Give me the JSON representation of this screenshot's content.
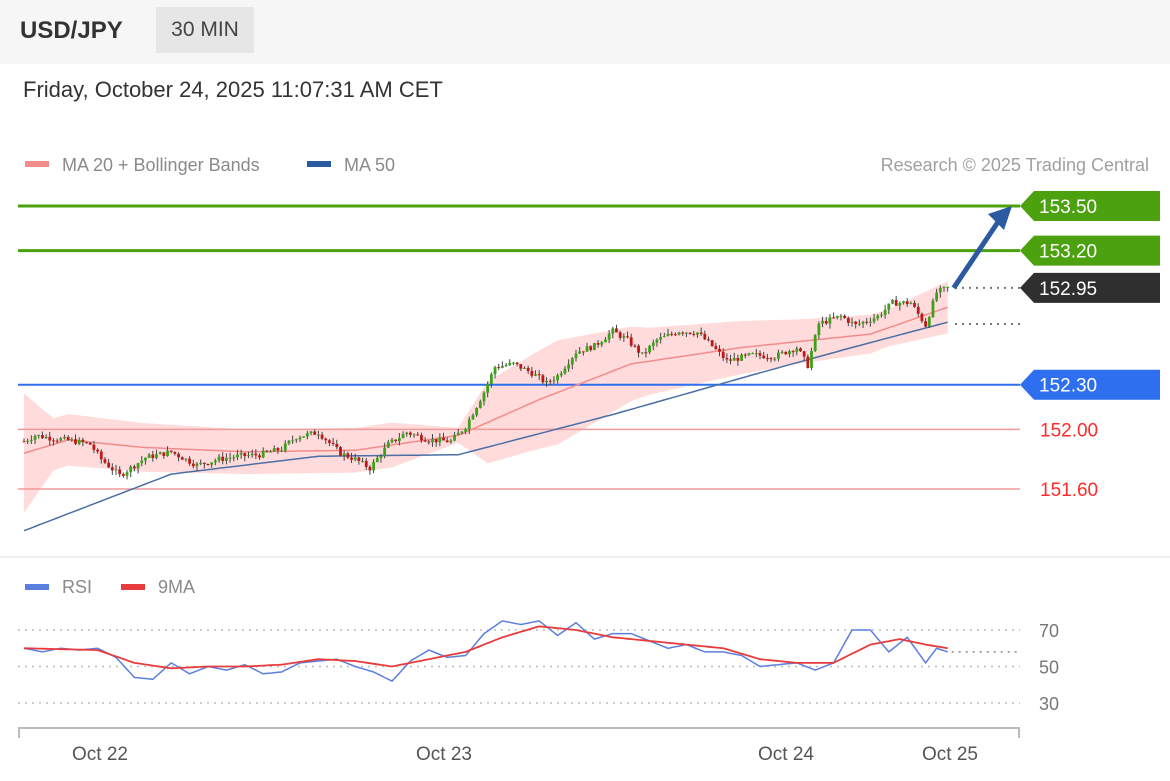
{
  "header": {
    "symbol": "USD/JPY",
    "timeframe": "30 MIN",
    "datetime": "Friday, October 24, 2025 11:07:31 AM CET"
  },
  "legend": {
    "ma20": "MA 20 + Bollinger Bands",
    "ma50": "MA 50",
    "credit": "Research © 2025 Trading Central"
  },
  "rsi_legend": {
    "rsi": "RSI",
    "ma9": "9MA"
  },
  "colors": {
    "resistance": "#4ca10f",
    "support": "#2e6ff0",
    "pivot": "#2f2f2f",
    "minor": "#ff3b3b",
    "up": "#3aa31a",
    "down": "#bf1717",
    "bollinger": "#ffcfcf",
    "ma20": "#f28c8c",
    "ma50": "#4a6fa5",
    "rsi": "#5b7fe0",
    "ma9": "#e83c3c",
    "arrow": "#2c5aa0"
  },
  "chart_data": [
    {
      "type": "line",
      "title": "USD/JPY 30 MIN",
      "x_ticks": [
        "Oct 22",
        "Oct 23",
        "Oct 24",
        "Oct 25"
      ],
      "ylim": [
        151.24,
        153.72
      ],
      "levels": [
        {
          "label": "153.50",
          "value": 153.5,
          "kind": "resistance"
        },
        {
          "label": "153.20",
          "value": 153.2,
          "kind": "resistance"
        },
        {
          "label": "152.95",
          "value": 152.95,
          "kind": "pivot"
        },
        {
          "label": "152.30",
          "value": 152.3,
          "kind": "support"
        },
        {
          "label": "152.00",
          "value": 152.0,
          "kind": "minor"
        },
        {
          "label": "151.60",
          "value": 151.6,
          "kind": "minor"
        }
      ],
      "forecast": {
        "from": 152.95,
        "to": 153.5
      },
      "close_anchors": [
        [
          0,
          151.92
        ],
        [
          3,
          151.96
        ],
        [
          8,
          151.94
        ],
        [
          14,
          151.92
        ],
        [
          18,
          151.9
        ],
        [
          21,
          151.8
        ],
        [
          26,
          151.69
        ],
        [
          33,
          151.81
        ],
        [
          40,
          151.85
        ],
        [
          47,
          151.76
        ],
        [
          53,
          151.8
        ],
        [
          58,
          151.82
        ],
        [
          64,
          151.83
        ],
        [
          70,
          151.87
        ],
        [
          74,
          151.95
        ],
        [
          80,
          151.98
        ],
        [
          86,
          151.84
        ],
        [
          90,
          151.8
        ],
        [
          94,
          151.74
        ],
        [
          99,
          151.9
        ],
        [
          104,
          151.98
        ],
        [
          110,
          151.93
        ],
        [
          116,
          151.92
        ],
        [
          120,
          152.02
        ],
        [
          125,
          152.25
        ],
        [
          128,
          152.42
        ],
        [
          133,
          152.44
        ],
        [
          138,
          152.38
        ],
        [
          142,
          152.31
        ],
        [
          145,
          152.36
        ],
        [
          150,
          152.52
        ],
        [
          155,
          152.56
        ],
        [
          160,
          152.66
        ],
        [
          164,
          152.6
        ],
        [
          168,
          152.5
        ],
        [
          172,
          152.6
        ],
        [
          178,
          152.66
        ],
        [
          183,
          152.65
        ],
        [
          187,
          152.56
        ],
        [
          191,
          152.46
        ],
        [
          198,
          152.5
        ],
        [
          204,
          152.49
        ],
        [
          210,
          152.55
        ],
        [
          213,
          152.43
        ],
        [
          216,
          152.71
        ],
        [
          222,
          152.76
        ],
        [
          226,
          152.7
        ],
        [
          232,
          152.76
        ],
        [
          236,
          152.85
        ],
        [
          241,
          152.85
        ],
        [
          245,
          152.7
        ],
        [
          248,
          152.92
        ],
        [
          251,
          152.95
        ]
      ],
      "ma20_anchors": [
        [
          0,
          151.84
        ],
        [
          12,
          151.93
        ],
        [
          32,
          151.88
        ],
        [
          60,
          151.85
        ],
        [
          90,
          151.86
        ],
        [
          118,
          151.96
        ],
        [
          140,
          152.2
        ],
        [
          165,
          152.44
        ],
        [
          195,
          152.55
        ],
        [
          230,
          152.64
        ],
        [
          251,
          152.82
        ]
      ],
      "ma50_anchors": [
        [
          0,
          151.32
        ],
        [
          40,
          151.7
        ],
        [
          80,
          151.82
        ],
        [
          118,
          151.83
        ],
        [
          160,
          152.1
        ],
        [
          200,
          152.38
        ],
        [
          225,
          152.55
        ],
        [
          251,
          152.72
        ]
      ],
      "bb_width_anchors": [
        [
          0,
          0.8
        ],
        [
          8,
          0.35
        ],
        [
          60,
          0.3
        ],
        [
          100,
          0.3
        ],
        [
          118,
          0.1
        ],
        [
          126,
          0.55
        ],
        [
          145,
          0.7
        ],
        [
          170,
          0.45
        ],
        [
          210,
          0.3
        ],
        [
          235,
          0.25
        ],
        [
          251,
          0.35
        ]
      ]
    },
    {
      "type": "line",
      "title": "RSI",
      "ylim": [
        20,
        80
      ],
      "y_ticks": [
        30,
        50,
        70
      ],
      "series": [
        {
          "name": "RSI",
          "anchors": [
            [
              0,
              60
            ],
            [
              5,
              58
            ],
            [
              10,
              60
            ],
            [
              15,
              59
            ],
            [
              20,
              60
            ],
            [
              25,
              55
            ],
            [
              30,
              44
            ],
            [
              35,
              43
            ],
            [
              40,
              52
            ],
            [
              45,
              46
            ],
            [
              50,
              50
            ],
            [
              55,
              48
            ],
            [
              60,
              51
            ],
            [
              65,
              46
            ],
            [
              70,
              47
            ],
            [
              75,
              52
            ],
            [
              80,
              53
            ],
            [
              85,
              54
            ],
            [
              90,
              50
            ],
            [
              95,
              47
            ],
            [
              100,
              42
            ],
            [
              105,
              53
            ],
            [
              110,
              59
            ],
            [
              115,
              55
            ],
            [
              120,
              56
            ],
            [
              125,
              68
            ],
            [
              130,
              75
            ],
            [
              135,
              73
            ],
            [
              140,
              75
            ],
            [
              145,
              67
            ],
            [
              150,
              74
            ],
            [
              155,
              65
            ],
            [
              160,
              68
            ],
            [
              165,
              68
            ],
            [
              170,
              64
            ],
            [
              175,
              60
            ],
            [
              180,
              62
            ],
            [
              185,
              58
            ],
            [
              190,
              58
            ],
            [
              195,
              56
            ],
            [
              200,
              50
            ],
            [
              205,
              51
            ],
            [
              210,
              52
            ],
            [
              215,
              48
            ],
            [
              220,
              52
            ],
            [
              225,
              70
            ],
            [
              230,
              70
            ],
            [
              235,
              58
            ],
            [
              240,
              66
            ],
            [
              245,
              52
            ],
            [
              248,
              60
            ],
            [
              251,
              58
            ]
          ]
        },
        {
          "name": "9MA",
          "anchors": [
            [
              0,
              60
            ],
            [
              20,
              59
            ],
            [
              30,
              52
            ],
            [
              40,
              49
            ],
            [
              50,
              50
            ],
            [
              60,
              50
            ],
            [
              70,
              51
            ],
            [
              80,
              54
            ],
            [
              90,
              53
            ],
            [
              100,
              50
            ],
            [
              110,
              54
            ],
            [
              120,
              58
            ],
            [
              130,
              66
            ],
            [
              140,
              72
            ],
            [
              150,
              70
            ],
            [
              160,
              66
            ],
            [
              175,
              63
            ],
            [
              190,
              60
            ],
            [
              200,
              54
            ],
            [
              210,
              52
            ],
            [
              220,
              52
            ],
            [
              230,
              62
            ],
            [
              238,
              65
            ],
            [
              245,
              62
            ],
            [
              251,
              60
            ]
          ]
        }
      ]
    }
  ]
}
